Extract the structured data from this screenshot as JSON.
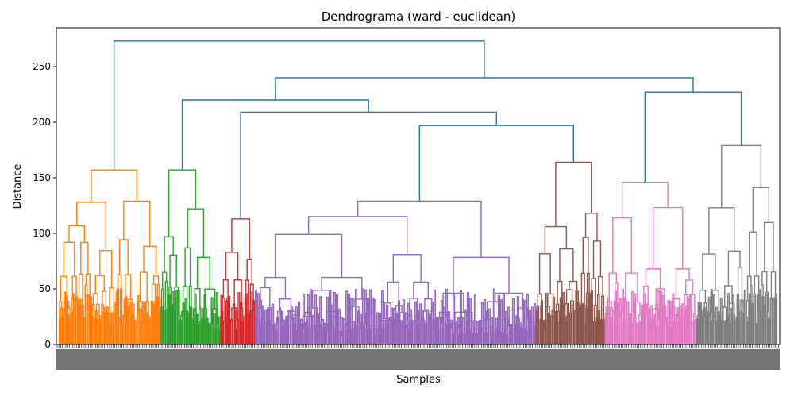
{
  "chart_data": {
    "type": "dendrogram",
    "title": "Dendrograma (ward - euclidean)",
    "xlabel": "Samples",
    "ylabel": "Distance",
    "ylim": [
      0,
      285
    ],
    "yticks": [
      0,
      50,
      100,
      150,
      200,
      250
    ],
    "grid": false,
    "colors": {
      "above_threshold": "#1f77b4",
      "clusters": [
        "#ff7f0e",
        "#2ca02c",
        "#d62728",
        "#9467bd",
        "#8c564b",
        "#e377c2",
        "#7f7f7f"
      ]
    },
    "clusters": [
      {
        "color": "#ff7f0e",
        "leaf_share": 0.142,
        "top_merges": [
          157,
          142,
          128,
          103,
          98,
          94,
          88,
          83
        ]
      },
      {
        "color": "#2ca02c",
        "leaf_share": 0.083,
        "top_merges": [
          157,
          122,
          97,
          82,
          76,
          72
        ]
      },
      {
        "color": "#d62728",
        "leaf_share": 0.048,
        "top_merges": [
          113,
          102,
          83,
          72,
          66
        ]
      },
      {
        "color": "#9467bd",
        "leaf_share": 0.391,
        "top_merges": [
          129,
          120,
          115,
          110,
          105,
          101,
          98,
          96,
          92,
          86,
          84,
          75,
          70,
          67,
          63
        ]
      },
      {
        "color": "#8c564b",
        "leaf_share": 0.096,
        "top_merges": [
          164,
          118,
          106,
          95,
          85,
          74
        ]
      },
      {
        "color": "#e377c2",
        "leaf_share": 0.127,
        "top_merges": [
          146,
          143,
          114,
          112,
          102,
          91,
          90,
          82
        ]
      },
      {
        "color": "#7f7f7f",
        "leaf_share": 0.113,
        "top_merges": [
          179,
          147,
          123,
          104,
          95,
          90,
          84,
          81
        ]
      }
    ],
    "root_merges": [
      {
        "distance": 273,
        "joins": [
          "orange",
          "rest"
        ]
      },
      {
        "distance": 240,
        "joins": [
          "green-red-purple-brown",
          "pink-gray"
        ]
      },
      {
        "distance": 227,
        "joins": [
          "pink",
          "gray"
        ]
      },
      {
        "distance": 220,
        "joins": [
          "green",
          "red-purple-brown"
        ]
      },
      {
        "distance": 209,
        "joins": [
          "red",
          "purple-brown"
        ]
      },
      {
        "distance": 197,
        "joins": [
          "purple",
          "brown"
        ]
      }
    ]
  }
}
